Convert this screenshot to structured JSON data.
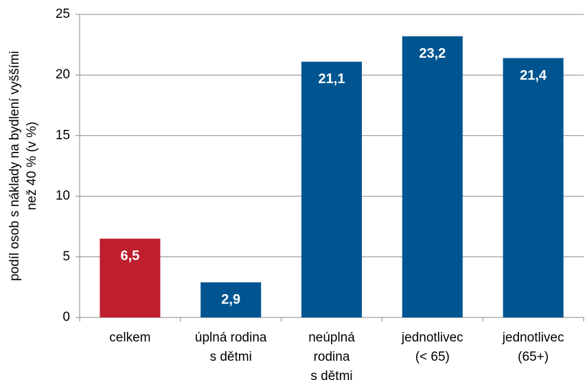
{
  "chart_data": {
    "type": "bar",
    "ylabel": [
      "podíl osob s náklady na bydlení vyššími",
      "než 40 % (v %)"
    ],
    "categories": [
      [
        "celkem"
      ],
      [
        "úplná rodina",
        "s dětmi"
      ],
      [
        "neúplná",
        "rodina",
        "s dětmi"
      ],
      [
        "jednotlivec",
        "(< 65)"
      ],
      [
        "jednotlivec",
        "(65+)"
      ]
    ],
    "values": [
      6.5,
      2.9,
      21.1,
      23.2,
      21.4
    ],
    "value_labels": [
      "6,5",
      "2,9",
      "21,1",
      "23,2",
      "21,4"
    ],
    "colors": [
      "#be1e2d",
      "#005591",
      "#005591",
      "#005591",
      "#005591"
    ],
    "ylim": [
      0,
      25
    ],
    "yticks": [
      0,
      5,
      10,
      15,
      20,
      25
    ],
    "grid": true
  }
}
